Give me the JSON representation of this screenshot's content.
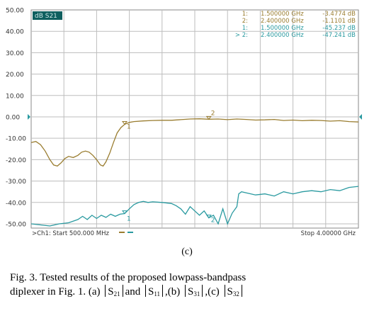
{
  "chart_data": {
    "type": "line",
    "yticks": [
      50,
      40,
      30,
      20,
      10,
      0,
      -10,
      -20,
      -30,
      -40,
      -50
    ],
    "ytick_labels": [
      "50.00",
      "40.00",
      "30.00",
      "20.00",
      "10.00",
      "0.00",
      "-10.00",
      "-20.00",
      "-30.00",
      "-40.00",
      "-50.00"
    ],
    "ylim": [
      -52,
      50
    ],
    "xlim": [
      0.5,
      4.0
    ],
    "trace_label": "dB S21",
    "start_label": ">Ch1: Start  500.000 MHz",
    "stop_label": "Stop  4.00000  GHz",
    "markers": [
      {
        "id": "1:",
        "freq": "1.500000  GHz",
        "value": "-3.4774 dB"
      },
      {
        "id": "2:",
        "freq": "2.400000  GHz",
        "value": "-1.1101 dB"
      },
      {
        "id": "1:",
        "freq": "1.500000  GHz",
        "value": "-45.237 dB"
      },
      {
        "id": "> 2:",
        "freq": "2.400000  GHz",
        "value": "-47.241 dB"
      }
    ],
    "marker_labels": [
      "1",
      "2",
      "1",
      "2"
    ],
    "series": [
      {
        "color": "#9a7d30",
        "points": [
          [
            0.5,
            -12
          ],
          [
            0.55,
            -11.5
          ],
          [
            0.6,
            -13
          ],
          [
            0.65,
            -16
          ],
          [
            0.7,
            -20
          ],
          [
            0.74,
            -22.5
          ],
          [
            0.78,
            -23
          ],
          [
            0.82,
            -21.5
          ],
          [
            0.86,
            -19.5
          ],
          [
            0.9,
            -18.5
          ],
          [
            0.95,
            -19
          ],
          [
            1.0,
            -18
          ],
          [
            1.04,
            -16.5
          ],
          [
            1.08,
            -16
          ],
          [
            1.12,
            -16.5
          ],
          [
            1.16,
            -18
          ],
          [
            1.2,
            -20
          ],
          [
            1.24,
            -22.5
          ],
          [
            1.27,
            -23
          ],
          [
            1.3,
            -21
          ],
          [
            1.34,
            -17
          ],
          [
            1.38,
            -12
          ],
          [
            1.42,
            -7.5
          ],
          [
            1.46,
            -5
          ],
          [
            1.5,
            -3.5
          ],
          [
            1.55,
            -2.6
          ],
          [
            1.6,
            -2.2
          ],
          [
            1.7,
            -1.9
          ],
          [
            1.8,
            -1.7
          ],
          [
            1.9,
            -1.6
          ],
          [
            2.0,
            -1.6
          ],
          [
            2.1,
            -1.3
          ],
          [
            2.2,
            -1.0
          ],
          [
            2.3,
            -0.9
          ],
          [
            2.4,
            -1.1
          ],
          [
            2.5,
            -1.0
          ],
          [
            2.6,
            -1.3
          ],
          [
            2.7,
            -1.0
          ],
          [
            2.8,
            -1.2
          ],
          [
            2.9,
            -1.5
          ],
          [
            3.0,
            -1.4
          ],
          [
            3.1,
            -1.2
          ],
          [
            3.2,
            -1.7
          ],
          [
            3.3,
            -1.5
          ],
          [
            3.4,
            -1.8
          ],
          [
            3.5,
            -1.6
          ],
          [
            3.6,
            -1.7
          ],
          [
            3.7,
            -2.0
          ],
          [
            3.8,
            -1.8
          ],
          [
            3.9,
            -2.2
          ],
          [
            4.0,
            -2.4
          ]
        ]
      },
      {
        "color": "#2a9aa0",
        "points": [
          [
            0.5,
            -50
          ],
          [
            0.6,
            -50.5
          ],
          [
            0.7,
            -51
          ],
          [
            0.8,
            -50
          ],
          [
            0.9,
            -49.5
          ],
          [
            1.0,
            -48
          ],
          [
            1.05,
            -46.5
          ],
          [
            1.1,
            -48
          ],
          [
            1.15,
            -46
          ],
          [
            1.2,
            -47.5
          ],
          [
            1.25,
            -46
          ],
          [
            1.3,
            -47
          ],
          [
            1.35,
            -45.5
          ],
          [
            1.4,
            -46.5
          ],
          [
            1.45,
            -45.5
          ],
          [
            1.5,
            -45.2
          ],
          [
            1.55,
            -43
          ],
          [
            1.6,
            -41
          ],
          [
            1.65,
            -40
          ],
          [
            1.7,
            -39.5
          ],
          [
            1.75,
            -40
          ],
          [
            1.8,
            -39.7
          ],
          [
            1.9,
            -40
          ],
          [
            2.0,
            -40.5
          ],
          [
            2.05,
            -41.5
          ],
          [
            2.1,
            -43
          ],
          [
            2.15,
            -45.5
          ],
          [
            2.2,
            -42
          ],
          [
            2.25,
            -44
          ],
          [
            2.3,
            -46
          ],
          [
            2.35,
            -44
          ],
          [
            2.4,
            -47.2
          ],
          [
            2.45,
            -46
          ],
          [
            2.5,
            -50
          ],
          [
            2.55,
            -43
          ],
          [
            2.6,
            -50
          ],
          [
            2.65,
            -45
          ],
          [
            2.7,
            -42
          ],
          [
            2.72,
            -36
          ],
          [
            2.75,
            -35
          ],
          [
            2.8,
            -35.5
          ],
          [
            2.9,
            -36.5
          ],
          [
            3.0,
            -36
          ],
          [
            3.1,
            -37
          ],
          [
            3.2,
            -35
          ],
          [
            3.3,
            -36
          ],
          [
            3.4,
            -35
          ],
          [
            3.5,
            -34.5
          ],
          [
            3.6,
            -35
          ],
          [
            3.7,
            -34
          ],
          [
            3.8,
            -34.5
          ],
          [
            3.9,
            -33
          ],
          [
            4.0,
            -32.5
          ]
        ]
      }
    ]
  },
  "panel_label": "(c)",
  "caption": {
    "line1": "Fig. 3. Tested results of the proposed lowpass-bandpass",
    "line2_a": "diplexer in Fig. 1. (a)",
    "s21": "S",
    "s21_sub": "21",
    "and": "and",
    "s11": "S",
    "s11_sub": "11",
    "b_part": ",(b)",
    "s31": "S",
    "s31_sub": "31",
    "c_part": ",(c)",
    "s32": "S",
    "s32_sub": "32"
  },
  "colors": {
    "grid": "#bdbdbd",
    "trace_s21": "#9a7d30",
    "trace_s32": "#2a9aa0",
    "active_tag": "#0f5f5f",
    "ref_arrow": "#2a9aa0"
  }
}
